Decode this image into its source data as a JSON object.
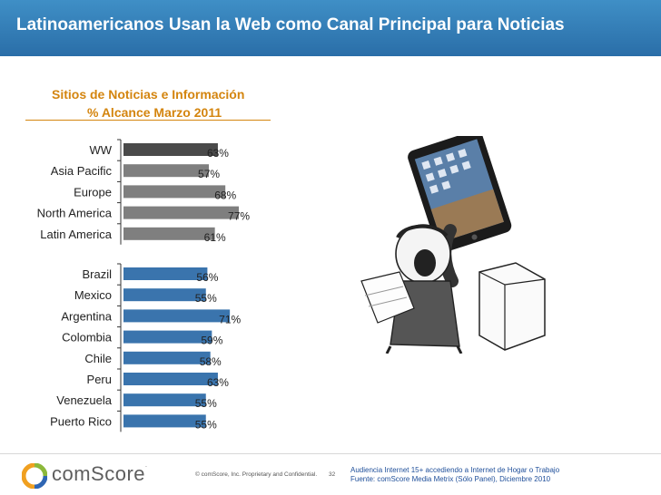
{
  "header": {
    "title": "Latinoamericanos Usan la Web como Canal Principal para Noticias"
  },
  "chart_data": {
    "type": "bar",
    "orientation": "horizontal",
    "title": "Sitios de Noticias e Información",
    "subtitle": "% Alcance Marzo 2011",
    "groups": [
      {
        "color": "#7f7f7f",
        "categories": [
          "WW",
          "Asia Pacific",
          "Europe",
          "North America",
          "Latin America"
        ],
        "values": [
          63,
          57,
          68,
          77,
          61
        ],
        "labels": [
          "63%",
          "57%",
          "68%",
          "77%",
          "61%"
        ]
      },
      {
        "color": "#3a74ad",
        "categories": [
          "Brazil",
          "Mexico",
          "Argentina",
          "Colombia",
          "Chile",
          "Peru",
          "Venezuela",
          "Puerto Rico"
        ],
        "values": [
          56,
          55,
          71,
          59,
          58,
          63,
          55,
          55
        ],
        "labels": [
          "56%",
          "55%",
          "71%",
          "59%",
          "58%",
          "63%",
          "55%",
          "55%"
        ]
      }
    ],
    "highlight": {
      "category": "WW",
      "color": "#4a4a4a"
    }
  },
  "footer": {
    "logo_text": "comScore",
    "logo_mark": ".",
    "copyright": "© comScore, Inc.  Proprietary and Confidential.",
    "page": "32",
    "note_line1": "Audiencia Internet 15+  accediendo a Internet de Hogar o Trabajo",
    "note_line2": "Fuente:  comScore Media Metrix (Sólo Panel), Diciembre 2010"
  }
}
